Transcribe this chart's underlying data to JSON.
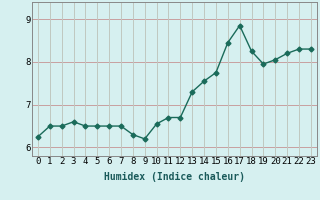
{
  "x": [
    0,
    1,
    2,
    3,
    4,
    5,
    6,
    7,
    8,
    9,
    10,
    11,
    12,
    13,
    14,
    15,
    16,
    17,
    18,
    19,
    20,
    21,
    22,
    23
  ],
  "y": [
    6.25,
    6.5,
    6.5,
    6.6,
    6.5,
    6.5,
    6.5,
    6.5,
    6.3,
    6.2,
    6.55,
    6.7,
    6.7,
    7.3,
    7.55,
    7.75,
    8.45,
    8.85,
    8.25,
    7.95,
    8.05,
    8.2,
    8.3,
    8.3
  ],
  "line_color": "#1a6b5a",
  "bg_color": "#d6f0f0",
  "grid_color_h": "#c8a0a0",
  "grid_color_v": "#c0c8c0",
  "xlabel": "Humidex (Indice chaleur)",
  "ylim": [
    5.8,
    9.4
  ],
  "xlim": [
    -0.5,
    23.5
  ],
  "yticks": [
    6,
    7,
    8,
    9
  ],
  "xticks": [
    0,
    1,
    2,
    3,
    4,
    5,
    6,
    7,
    8,
    9,
    10,
    11,
    12,
    13,
    14,
    15,
    16,
    17,
    18,
    19,
    20,
    21,
    22,
    23
  ],
  "marker": "D",
  "marker_size": 2.5,
  "line_width": 1.0,
  "font_size_axis": 7,
  "font_size_tick": 6.5
}
